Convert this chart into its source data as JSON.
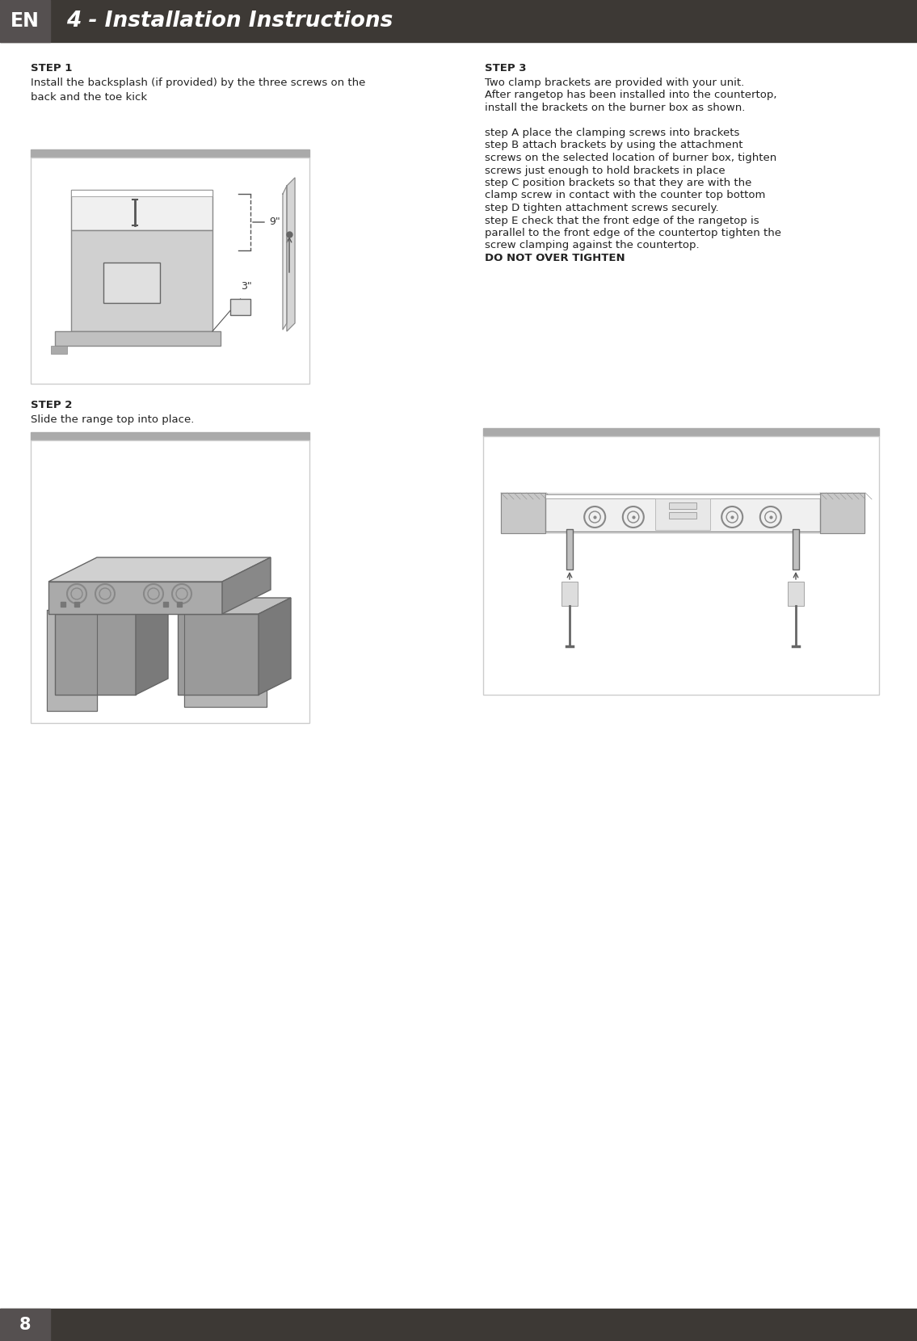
{
  "page_bg": "#ffffff",
  "header_bg": "#3d3935",
  "header_text_color": "#ffffff",
  "header_en_bg": "#555050",
  "header_title": "4 - Installation Instructions",
  "header_en": "EN",
  "footer_bg": "#3d3935",
  "footer_text": "8",
  "footer_text_color": "#ffffff",
  "step1_title": "STEP 1",
  "step1_text": "Install the backsplash (if provided) by the three screws on the\nback and the toe kick",
  "step2_title": "STEP 2",
  "step2_text": "Slide the range top into place.",
  "step3_title": "STEP 3",
  "step3_text": "Two clamp brackets are provided with your unit.\nAfter rangetop has been installed into the countertop,\ninstall the brackets on the burner box as shown.\n\nstep A place the clamping screws into brackets\nstep B attach brackets by using the attachment\nscrews on the selected location of burner box, tighten\nscrews just enough to hold brackets in place\nstep C position brackets so that they are with the\nclamp screw in contact with the counter top bottom\nstep D tighten attachment screws securely.\nstep E check that the front edge of the rangetop is\nparallel to the front edge of the countertop tighten the\nscrew clamping against the countertop.\nDO NOT OVER TIGHTEN",
  "box_border_color": "#cccccc",
  "box_bg": "#ffffff",
  "diagram_line_color": "#555555",
  "diagram_fill_light": "#d8d8d8",
  "diagram_fill_medium": "#bbbbbb",
  "annotation_9": "9\"",
  "annotation_3": "3\""
}
